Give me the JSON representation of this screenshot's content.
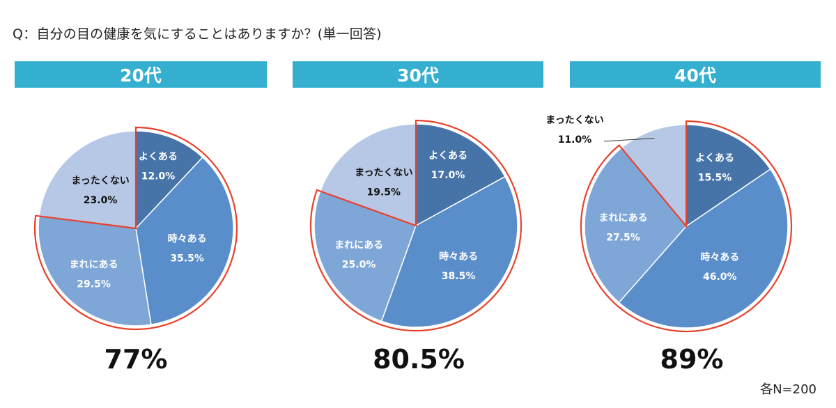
{
  "question": "Q：自分の目の健康を気にすることはありますか？(単一回答)",
  "base_note": "各N=200",
  "colors": {
    "header": "#35afd0",
    "highlight": "#e8412b",
    "slices": [
      "#4674a8",
      "#5a8ecb",
      "#7ea7d8",
      "#b7c8e6"
    ],
    "slice_text": [
      "#ffffff",
      "#ffffff",
      "#ffffff",
      "#111111"
    ]
  },
  "chart_data": [
    {
      "type": "pie",
      "title": "20代",
      "total_label": "77%",
      "categories": [
        "よくある",
        "時々ある",
        "まれにある",
        "まったくない"
      ],
      "values": [
        12.0,
        35.5,
        29.5,
        23.0
      ],
      "value_labels": [
        "12.0%",
        "35.5%",
        "29.5%",
        "23.0%"
      ],
      "highlight_categories": [
        "よくある",
        "時々ある",
        "まれにある"
      ]
    },
    {
      "type": "pie",
      "title": "30代",
      "total_label": "80.5%",
      "categories": [
        "よくある",
        "時々ある",
        "まれにある",
        "まったくない"
      ],
      "values": [
        17.0,
        38.5,
        25.0,
        19.5
      ],
      "value_labels": [
        "17.0%",
        "38.5%",
        "25.0%",
        "19.5%"
      ],
      "highlight_categories": [
        "よくある",
        "時々ある",
        "まれにある"
      ]
    },
    {
      "type": "pie",
      "title": "40代",
      "total_label": "89%",
      "categories": [
        "よくある",
        "時々ある",
        "まれにある",
        "まったくない"
      ],
      "values": [
        15.5,
        46.0,
        27.5,
        11.0
      ],
      "value_labels": [
        "15.5%",
        "46.0%",
        "27.5%",
        "11.0%"
      ],
      "highlight_categories": [
        "よくある",
        "時々ある",
        "まれにある"
      ]
    }
  ]
}
